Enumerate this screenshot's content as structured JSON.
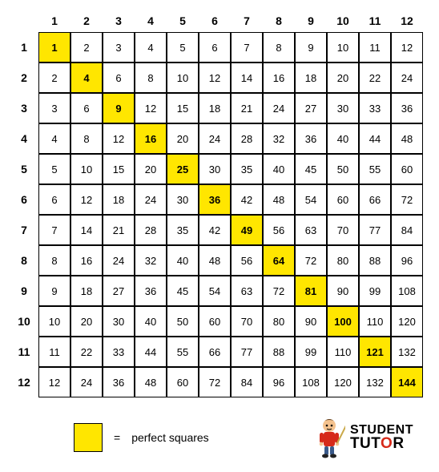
{
  "table": {
    "size": 12,
    "col_headers": [
      "1",
      "2",
      "3",
      "4",
      "5",
      "6",
      "7",
      "8",
      "9",
      "10",
      "11",
      "12"
    ],
    "row_headers": [
      "1",
      "2",
      "3",
      "4",
      "5",
      "6",
      "7",
      "8",
      "9",
      "10",
      "11",
      "12"
    ],
    "rows": [
      [
        "1",
        "2",
        "3",
        "4",
        "5",
        "6",
        "7",
        "8",
        "9",
        "10",
        "11",
        "12"
      ],
      [
        "2",
        "4",
        "6",
        "8",
        "10",
        "12",
        "14",
        "16",
        "18",
        "20",
        "22",
        "24"
      ],
      [
        "3",
        "6",
        "9",
        "12",
        "15",
        "18",
        "21",
        "24",
        "27",
        "30",
        "33",
        "36"
      ],
      [
        "4",
        "8",
        "12",
        "16",
        "20",
        "24",
        "28",
        "32",
        "36",
        "40",
        "44",
        "48"
      ],
      [
        "5",
        "10",
        "15",
        "20",
        "25",
        "30",
        "35",
        "40",
        "45",
        "50",
        "55",
        "60"
      ],
      [
        "6",
        "12",
        "18",
        "24",
        "30",
        "36",
        "42",
        "48",
        "54",
        "60",
        "66",
        "72"
      ],
      [
        "7",
        "14",
        "21",
        "28",
        "35",
        "42",
        "49",
        "56",
        "63",
        "70",
        "77",
        "84"
      ],
      [
        "8",
        "16",
        "24",
        "32",
        "40",
        "48",
        "56",
        "64",
        "72",
        "80",
        "88",
        "96"
      ],
      [
        "9",
        "18",
        "27",
        "36",
        "45",
        "54",
        "63",
        "72",
        "81",
        "90",
        "99",
        "108"
      ],
      [
        "10",
        "20",
        "30",
        "40",
        "50",
        "60",
        "70",
        "80",
        "90",
        "100",
        "110",
        "120"
      ],
      [
        "11",
        "22",
        "33",
        "44",
        "55",
        "66",
        "77",
        "88",
        "99",
        "110",
        "121",
        "132"
      ],
      [
        "12",
        "24",
        "36",
        "48",
        "60",
        "72",
        "84",
        "96",
        "108",
        "120",
        "132",
        "144"
      ]
    ],
    "highlight_color": "#ffe600",
    "cell_bg": "#ffffff",
    "border_color": "#000000",
    "header_font_weight": "bold",
    "font_size_header": 14,
    "font_size_cell": 13
  },
  "legend": {
    "equals": "=",
    "label": "perfect squares",
    "swatch_color": "#ffe600"
  },
  "logo": {
    "line1": "STUDENT",
    "line2_part1": "TUT",
    "line2_accent": "O",
    "line2_part2": "R",
    "accent_color": "#d62a1a"
  }
}
